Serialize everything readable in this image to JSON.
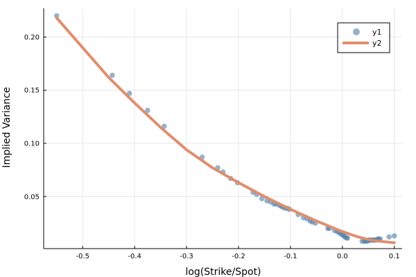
{
  "chart_data": {
    "type": "scatter",
    "xlabel": "log(Strike/Spot)",
    "ylabel": "Implied Variance",
    "xlim": [
      -0.575,
      0.115
    ],
    "ylim": [
      0.001,
      0.227
    ],
    "x_ticks": [
      -0.5,
      -0.4,
      -0.3,
      -0.2,
      -0.1,
      0.0,
      0.1
    ],
    "x_tick_labels": [
      "-0.5",
      "-0.4",
      "-0.3",
      "-0.2",
      "-0.1",
      "0.0",
      "0.1"
    ],
    "y_ticks": [
      0.05,
      0.1,
      0.15,
      0.2
    ],
    "y_tick_labels": [
      "0.05",
      "0.10",
      "0.15",
      "0.20"
    ],
    "grid": true,
    "legend_position": "top-right",
    "series": [
      {
        "name": "y1",
        "kind": "scatter",
        "color": "#4e7fa8",
        "x": [
          -0.55,
          -0.443,
          -0.41,
          -0.375,
          -0.343,
          -0.27,
          -0.24,
          -0.23,
          -0.215,
          -0.202,
          -0.172,
          -0.165,
          -0.155,
          -0.145,
          -0.138,
          -0.132,
          -0.128,
          -0.122,
          -0.118,
          -0.115,
          -0.11,
          -0.106,
          -0.102,
          -0.085,
          -0.075,
          -0.068,
          -0.062,
          -0.058,
          -0.052,
          -0.028,
          -0.025,
          -0.015,
          -0.01,
          -0.006,
          -0.003,
          0.0,
          0.003,
          0.005,
          0.008,
          0.01,
          0.038,
          0.042,
          0.045,
          0.048,
          0.05,
          0.052,
          0.055,
          0.058,
          0.06,
          0.062,
          0.065,
          0.068,
          0.07,
          0.073,
          0.09,
          0.1
        ],
        "y": [
          0.22,
          0.164,
          0.147,
          0.131,
          0.116,
          0.087,
          0.077,
          0.073,
          0.067,
          0.063,
          0.054,
          0.052,
          0.048,
          0.046,
          0.045,
          0.043,
          0.043,
          0.042,
          0.041,
          0.04,
          0.039,
          0.039,
          0.038,
          0.033,
          0.03,
          0.029,
          0.027,
          0.026,
          0.025,
          0.02,
          0.02,
          0.018,
          0.017,
          0.016,
          0.015,
          0.014,
          0.013,
          0.012,
          0.011,
          0.011,
          0.008,
          0.008,
          0.008,
          0.008,
          0.009,
          0.009,
          0.009,
          0.009,
          0.009,
          0.009,
          0.009,
          0.01,
          0.01,
          0.01,
          0.012,
          0.013
        ]
      },
      {
        "name": "y2",
        "kind": "line",
        "color": "#e08e6d",
        "x": [
          -0.55,
          -0.5,
          -0.45,
          -0.4,
          -0.35,
          -0.3,
          -0.25,
          -0.2,
          -0.15,
          -0.1,
          -0.05,
          0.0,
          0.03,
          0.05,
          0.07,
          0.1
        ],
        "y": [
          0.218,
          0.19,
          0.162,
          0.138,
          0.115,
          0.094,
          0.077,
          0.063,
          0.05,
          0.038,
          0.027,
          0.017,
          0.012,
          0.0095,
          0.008,
          0.0065
        ]
      }
    ]
  }
}
